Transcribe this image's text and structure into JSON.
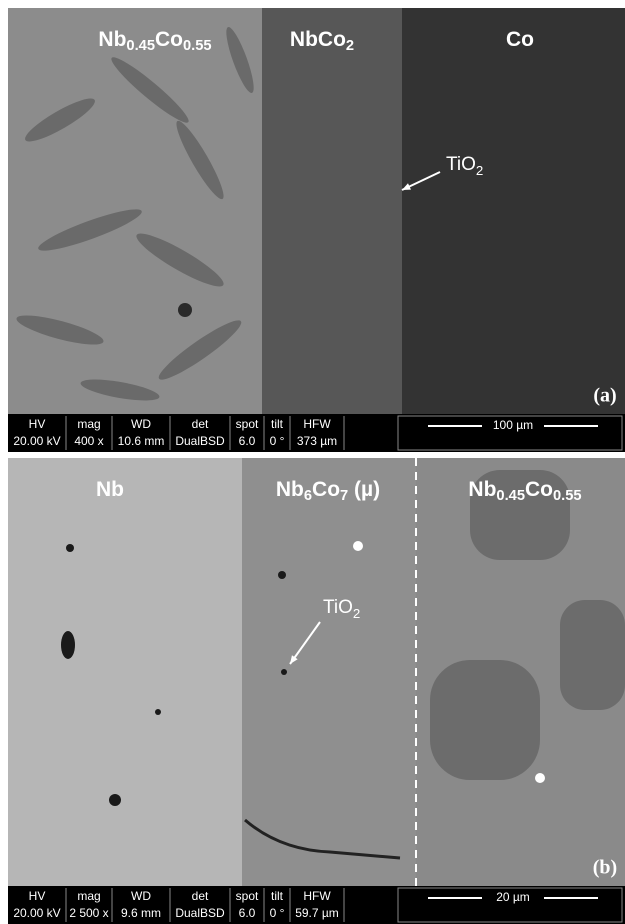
{
  "panels": [
    {
      "letter": "(a)",
      "labels": [
        {
          "parts": [
            {
              "text": "Nb"
            },
            {
              "text": "0.45",
              "sub": true
            },
            {
              "text": "Co"
            },
            {
              "text": "0.55",
              "sub": true
            }
          ]
        },
        {
          "parts": [
            {
              "text": "NbCo"
            },
            {
              "text": "2",
              "sub": true
            }
          ]
        },
        {
          "parts": [
            {
              "text": "Co"
            }
          ]
        }
      ],
      "annotation": {
        "parts": [
          {
            "text": "TiO"
          },
          {
            "text": "2",
            "sub": true
          }
        ]
      },
      "info": {
        "headers": [
          "HV",
          "mag",
          "WD",
          "det",
          "spot",
          "tilt",
          "HFW"
        ],
        "values": [
          "20.00 kV",
          "400 x",
          "10.6 mm",
          "DualBSD",
          "6.0",
          "0 °",
          "373 µm"
        ]
      },
      "scale_bar": "100 µm"
    },
    {
      "letter": "(b)",
      "labels": [
        {
          "parts": [
            {
              "text": "Nb"
            }
          ]
        },
        {
          "parts": [
            {
              "text": "Nb"
            },
            {
              "text": "6",
              "sub": true
            },
            {
              "text": "Co"
            },
            {
              "text": "7",
              "sub": true
            },
            {
              "text": " (µ)"
            }
          ]
        },
        {
          "parts": [
            {
              "text": "Nb"
            },
            {
              "text": "0.45",
              "sub": true
            },
            {
              "text": "Co"
            },
            {
              "text": "0.55",
              "sub": true
            }
          ]
        }
      ],
      "annotation": {
        "parts": [
          {
            "text": "TiO"
          },
          {
            "text": "2",
            "sub": true
          }
        ]
      },
      "info": {
        "headers": [
          "HV",
          "mag",
          "WD",
          "det",
          "spot",
          "tilt",
          "HFW"
        ],
        "values": [
          "20.00 kV",
          "2 500 x",
          "9.6 mm",
          "DualBSD",
          "6.0",
          "0 °",
          "59.7 µm"
        ]
      },
      "scale_bar": "20 µm"
    }
  ]
}
